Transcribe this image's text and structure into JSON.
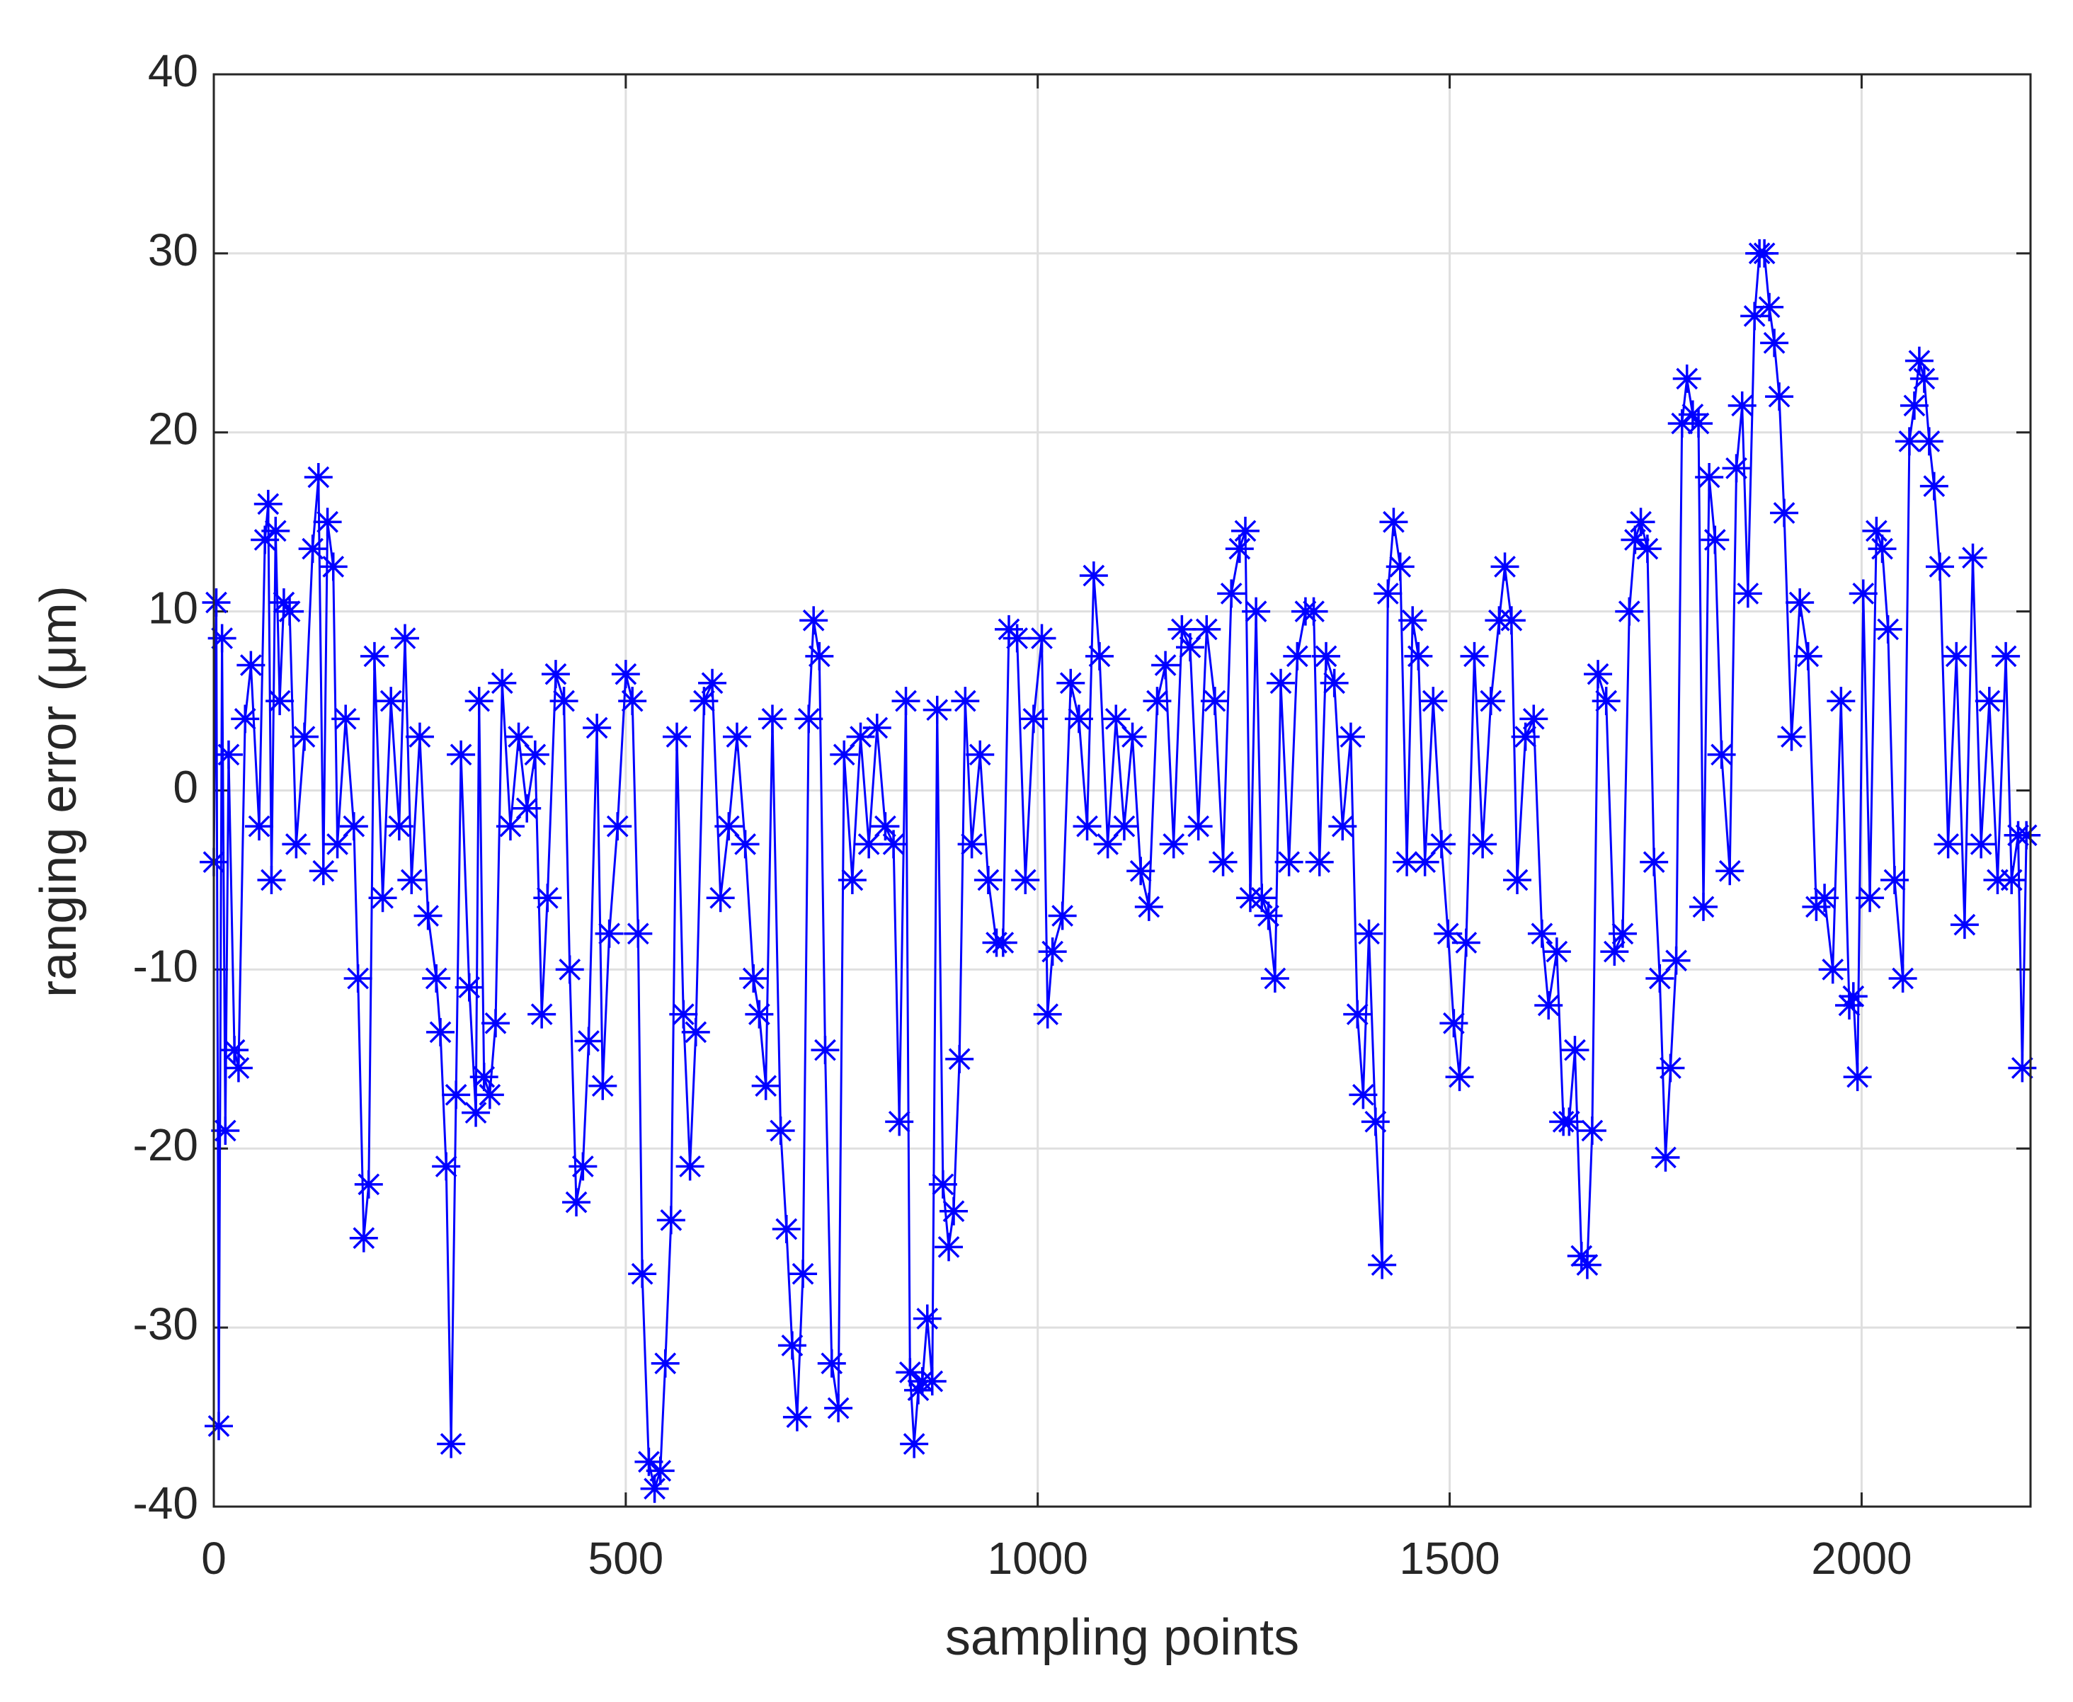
{
  "chart_data": {
    "type": "line",
    "xlabel": "sampling points",
    "ylabel": "ranging error (μm)",
    "color": "#0000ff",
    "marker": "*",
    "grid": true,
    "xlim": [
      0,
      2205
    ],
    "xticks": [
      0,
      500,
      1000,
      1500,
      2000
    ],
    "ylim": [
      -40,
      40
    ],
    "yticks": [
      -40,
      -30,
      -20,
      -10,
      0,
      10,
      20,
      30,
      40
    ],
    "x": [
      0,
      3,
      6,
      10,
      14,
      18,
      25,
      30,
      38,
      45,
      55,
      62,
      66,
      70,
      75,
      80,
      85,
      92,
      100,
      110,
      120,
      127,
      133,
      138,
      145,
      150,
      160,
      170,
      175,
      182,
      188,
      195,
      205,
      215,
      225,
      232,
      240,
      250,
      260,
      270,
      275,
      282,
      288,
      294,
      300,
      310,
      318,
      322,
      328,
      335,
      342,
      350,
      360,
      370,
      380,
      390,
      398,
      405,
      415,
      425,
      432,
      440,
      448,
      455,
      465,
      472,
      480,
      490,
      500,
      508,
      515,
      520,
      528,
      535,
      542,
      548,
      555,
      562,
      570,
      578,
      585,
      595,
      605,
      615,
      625,
      635,
      645,
      655,
      662,
      670,
      678,
      688,
      695,
      702,
      708,
      715,
      722,
      728,
      735,
      742,
      750,
      758,
      765,
      775,
      785,
      795,
      805,
      815,
      825,
      832,
      840,
      845,
      850,
      855,
      860,
      866,
      872,
      878,
      885,
      892,
      898,
      905,
      912,
      920,
      930,
      940,
      950,
      958,
      965,
      975,
      985,
      995,
      1005,
      1012,
      1018,
      1030,
      1040,
      1050,
      1060,
      1068,
      1075,
      1085,
      1095,
      1105,
      1115,
      1125,
      1135,
      1145,
      1155,
      1165,
      1175,
      1185,
      1195,
      1205,
      1215,
      1225,
      1235,
      1245,
      1252,
      1258,
      1265,
      1272,
      1280,
      1288,
      1295,
      1305,
      1315,
      1325,
      1335,
      1342,
      1350,
      1360,
      1370,
      1380,
      1388,
      1395,
      1402,
      1410,
      1418,
      1425,
      1432,
      1440,
      1448,
      1455,
      1462,
      1470,
      1480,
      1490,
      1498,
      1505,
      1512,
      1520,
      1530,
      1540,
      1550,
      1560,
      1567,
      1575,
      1582,
      1592,
      1602,
      1612,
      1620,
      1630,
      1638,
      1645,
      1652,
      1660,
      1667,
      1673,
      1680,
      1690,
      1700,
      1710,
      1718,
      1725,
      1732,
      1740,
      1748,
      1755,
      1762,
      1768,
      1775,
      1782,
      1788,
      1795,
      1802,
      1808,
      1815,
      1822,
      1830,
      1840,
      1848,
      1855,
      1862,
      1870,
      1876,
      1882,
      1888,
      1894,
      1900,
      1906,
      1915,
      1925,
      1935,
      1945,
      1955,
      1965,
      1975,
      1985,
      1990,
      1995,
      2002,
      2010,
      2018,
      2025,
      2032,
      2040,
      2050,
      2058,
      2064,
      2070,
      2076,
      2082,
      2088,
      2095,
      2105,
      2115,
      2125,
      2135,
      2145,
      2155,
      2165,
      2175,
      2182,
      2190,
      2195,
      2200
    ],
    "values": [
      -4,
      10.5,
      -35.5,
      8.5,
      -19,
      2,
      -14.5,
      -15.5,
      4,
      7,
      -2,
      14,
      16,
      -5,
      14.5,
      5,
      10.5,
      10,
      -3,
      3,
      13.5,
      17.5,
      -4.5,
      15,
      12.5,
      -3,
      4,
      -2,
      -10.5,
      -25,
      -22,
      7.5,
      -6,
      5,
      -2,
      8.5,
      -5,
      3,
      -7,
      -10.5,
      -13.5,
      -21,
      -36.5,
      -17,
      2,
      -11,
      -18,
      5,
      -16,
      -17,
      -13,
      6,
      -2,
      3,
      -1,
      2,
      -12.5,
      -6,
      6.5,
      5,
      -10,
      -23,
      -21,
      -14,
      3.5,
      -16.5,
      -8,
      -2,
      6.5,
      5,
      -8,
      -27,
      -37.5,
      -39,
      -38,
      -32,
      -24,
      3,
      -12.5,
      -21,
      -13.5,
      5,
      6,
      -6,
      -2,
      3,
      -3,
      -10.5,
      -12.5,
      -16.5,
      4,
      -19,
      -24.5,
      -31,
      -35,
      -27,
      4,
      9.5,
      7.5,
      -14.5,
      -32,
      -34.5,
      2,
      -5,
      3,
      -3,
      3.5,
      -2,
      -3,
      -18.5,
      5,
      -32.5,
      -36.5,
      -33.5,
      -33,
      -29.5,
      -33,
      4.5,
      -22,
      -25.5,
      -23.5,
      -15,
      5,
      -3,
      2,
      -5,
      -8.5,
      -8.5,
      9,
      8.5,
      -5,
      4,
      8.5,
      -12.5,
      -9,
      -7,
      6,
      4,
      -2,
      12,
      7.5,
      -3,
      4,
      -2,
      3,
      -4.5,
      -6.5,
      5,
      7,
      -3,
      9,
      8,
      -2,
      9,
      5,
      -4,
      11,
      13.5,
      14.5,
      -6,
      10,
      -6,
      -7,
      -10.5,
      6,
      -4,
      7.5,
      10,
      10,
      -4,
      7.5,
      6,
      -2,
      3,
      -12.5,
      -17,
      -8,
      -18.5,
      -26.5,
      11,
      15,
      12.5,
      -4,
      9.5,
      7.5,
      -4,
      5,
      -3,
      -8,
      -13,
      -16,
      -8.5,
      7.5,
      -3,
      5,
      9.5,
      12.5,
      9.5,
      -5,
      3,
      4,
      -8,
      -12,
      -9,
      -18.5,
      -18.5,
      -14.5,
      -26,
      -26.5,
      -19,
      6.5,
      5,
      -9,
      -8,
      10,
      14,
      15,
      13.5,
      -4,
      -10.5,
      -20.5,
      -15.5,
      -9.5,
      20.5,
      23,
      21,
      20.5,
      -6.5,
      17.5,
      14,
      2,
      -4.5,
      18,
      21.5,
      11,
      26.5,
      30,
      30,
      27,
      25,
      22,
      15.5,
      3,
      10.5,
      7.5,
      -6.5,
      -6,
      -10,
      5,
      -12,
      -11.5,
      -16,
      11,
      -6,
      14.5,
      13.5,
      9,
      -5,
      -10.5,
      19.5,
      21.5,
      24,
      23,
      19.5,
      17,
      12.5,
      -3,
      7.5,
      -7.5,
      13,
      -3,
      5,
      -5,
      7.5,
      -5,
      -2.5,
      -15.5,
      -2.5
    ]
  }
}
